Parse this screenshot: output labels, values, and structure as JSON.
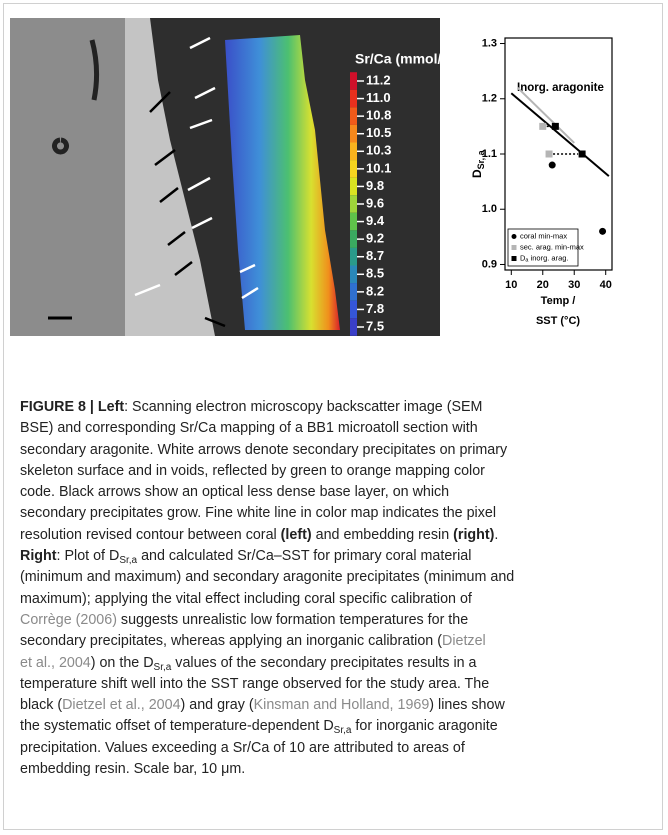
{
  "figure": {
    "colorbar_title": "Sr/Ca (mmol/mol)",
    "colorbar_labels": [
      "11.2",
      "11.0",
      "10.8",
      "10.5",
      "10.3",
      "10.1",
      "9.8",
      "9.6",
      "9.4",
      "9.2",
      "8.7",
      "8.5",
      "8.2",
      "7.8",
      "7.5"
    ],
    "colorbar_colors": [
      "#d0102a",
      "#e8301e",
      "#f05a1a",
      "#f5881c",
      "#f8b21e",
      "#f5d51f",
      "#d9e321",
      "#9fd53a",
      "#5fc24a",
      "#3aa960",
      "#2a9a8a",
      "#2a88b8",
      "#2f70d0",
      "#3556d8",
      "#3a3fc8"
    ]
  },
  "chart_data": {
    "type": "scatter",
    "ylabel": "D",
    "ylabel_sub": "Sr, a",
    "xlabel": [
      "Temp /",
      "SST (°C)"
    ],
    "annotation": "Inorg. aragonite",
    "xlim": [
      8,
      42
    ],
    "ylim": [
      0.89,
      1.31
    ],
    "xticks": [
      10,
      20,
      30,
      40
    ],
    "yticks": [
      {
        "value": 0.9,
        "label": "0.9"
      },
      {
        "value": 1,
        "label": "1.0"
      },
      {
        "value": 1.1,
        "label": "1.1"
      },
      {
        "value": 1.2,
        "label": "1.2"
      },
      1.3
    ],
    "legend": "lower left",
    "series": [
      {
        "name": "coral min-max",
        "marker": "circle",
        "color": "#000000",
        "x": [
          23,
          39
        ],
        "y": [
          1.08,
          0.96
        ]
      },
      {
        "name": "sec. arag. min-max",
        "marker": "square",
        "color": "#b5b5b5",
        "x": [
          20,
          22
        ],
        "y": [
          1.15,
          1.1
        ]
      },
      {
        "name": "D",
        "name_sub": "a",
        "name_rest": " inorg. arag.",
        "marker": "square",
        "color": "#000000",
        "x": [
          24,
          32.5
        ],
        "y": [
          1.15,
          1.1
        ]
      },
      {
        "marker": "line",
        "color": "#b5b5b5",
        "x": [
          12,
          30
        ],
        "y": [
          1.22,
          1.12
        ]
      },
      {
        "marker": "line",
        "color": "#000000",
        "x": [
          10,
          41
        ],
        "y": [
          1.21,
          1.06
        ]
      }
    ]
  },
  "caption": [
    [
      {
        "text": "FIGURE 8 | Left",
        "style": "b"
      },
      {
        "text": ": Scanning electron microscopy backscatter image (SEM",
        "style": "n"
      }
    ],
    [
      {
        "text": "BSE) and corresponding Sr/Ca mapping of a BB1 microatoll section with",
        "style": "n"
      }
    ],
    [
      {
        "text": "secondary aragonite. White arrows denote secondary precipitates on primary",
        "style": "n"
      }
    ],
    [
      {
        "text": "skeleton surface and in voids, reflected by green to orange mapping color",
        "style": "n"
      }
    ],
    [
      {
        "text": "code. Black arrows show an optical less dense base layer, on which",
        "style": "n"
      }
    ],
    [
      {
        "text": "secondary precipitates grow. Fine white line in color map indicates the pixel",
        "style": "n"
      }
    ],
    [
      {
        "text": "resolution revised contour between coral ",
        "style": "n"
      },
      {
        "text": "(left)",
        "style": "b"
      },
      {
        "text": " and embedding resin ",
        "style": "n"
      },
      {
        "text": "(right)",
        "style": "b"
      },
      {
        "text": ".",
        "style": "n"
      }
    ],
    [
      {
        "text": "Right",
        "style": "b"
      },
      {
        "text": ": Plot of D",
        "style": "n"
      },
      {
        "text": "Sr,a",
        "style": "sub"
      },
      {
        "text": " and calculated Sr/Ca–SST for primary coral material",
        "style": "n"
      }
    ],
    [
      {
        "text": "(minimum and maximum) and secondary aragonite precipitates (minimum and",
        "style": "n"
      }
    ],
    [
      {
        "text": "maximum); applying the vital effect including coral specific calibration of",
        "style": "n"
      }
    ],
    [
      {
        "text": "Corrège (2006)",
        "style": "link"
      },
      {
        "text": " suggests unrealistic low formation temperatures for the",
        "style": "n"
      }
    ],
    [
      {
        "text": "secondary precipitates, whereas applying an inorganic calibration (",
        "style": "n"
      },
      {
        "text": "Dietzel",
        "style": "link"
      }
    ],
    [
      {
        "text": "et al., 2004",
        "style": "link"
      },
      {
        "text": ") on the D",
        "style": "n"
      },
      {
        "text": "Sr,a",
        "style": "sub"
      },
      {
        "text": " values of the secondary precipitates results in a",
        "style": "n"
      }
    ],
    [
      {
        "text": "temperature shift well into the SST range observed for the study area. The",
        "style": "n"
      }
    ],
    [
      {
        "text": "black (",
        "style": "n"
      },
      {
        "text": "Dietzel et al., 2004",
        "style": "link"
      },
      {
        "text": ") and gray (",
        "style": "n"
      },
      {
        "text": "Kinsman and Holland, 1969",
        "style": "link"
      },
      {
        "text": ") lines show",
        "style": "n"
      }
    ],
    [
      {
        "text": "the systematic offset of temperature-dependent D",
        "style": "n"
      },
      {
        "text": "Sr,a",
        "style": "sub"
      },
      {
        "text": " for inorganic aragonite",
        "style": "n"
      }
    ],
    [
      {
        "text": "precipitation. Values exceeding a Sr/Ca of 10 are attributed to areas of",
        "style": "n"
      }
    ],
    [
      {
        "text": "embedding resin. Scale bar, 10 μm.",
        "style": "n"
      }
    ]
  ]
}
